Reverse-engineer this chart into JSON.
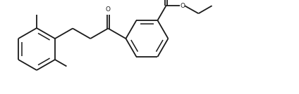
{
  "bg_color": "#ffffff",
  "line_color": "#1a1a1a",
  "line_width": 1.3,
  "figsize": [
    4.24,
    1.34
  ],
  "dpi": 100,
  "xlim": [
    0.0,
    4.24
  ],
  "ylim": [
    0.0,
    1.34
  ]
}
